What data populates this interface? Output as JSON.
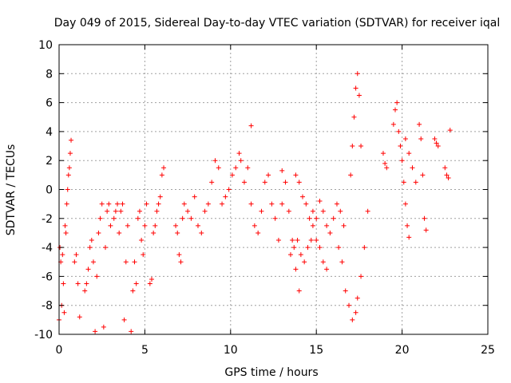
{
  "chart_data": {
    "type": "scatter",
    "title": "Day 049 of 2015, Sidereal Day-to-day VTEC variation (SDTVAR) for receiver iqal",
    "xlabel": "GPS time / hours",
    "ylabel": "SDTVAR / TECUs",
    "xlim": [
      0,
      25
    ],
    "ylim": [
      -10,
      10
    ],
    "xticks": [
      "0",
      "5",
      "10",
      "15",
      "20",
      "25"
    ],
    "yticks": [
      "-10",
      "-8",
      "-6",
      "-4",
      "-2",
      "0",
      "2",
      "4",
      "6",
      "8",
      "10"
    ],
    "grid": true,
    "marker": "+",
    "color": "#ff0000",
    "segments": [
      {
        "x": [
          0.0,
          0.1,
          0.2,
          0.3,
          0.4,
          0.5,
          0.55,
          0.6,
          0.65,
          0.7
        ],
        "y": [
          -9.0,
          -5.0,
          -4.5,
          -8.5,
          -3.0,
          0.0,
          1.0,
          1.5,
          2.5,
          3.4
        ]
      },
      {
        "x": [
          0.05,
          0.15,
          0.25,
          0.35,
          0.45
        ],
        "y": [
          -4.0,
          -8.0,
          -6.5,
          -2.5,
          -1.0
        ]
      },
      {
        "x": [
          0.9,
          1.0,
          1.1,
          1.2
        ],
        "y": [
          -5.0,
          -4.5,
          -6.5,
          -8.8
        ]
      },
      {
        "x": [
          1.5,
          1.6,
          1.7,
          1.8,
          1.9,
          2.0,
          2.1,
          2.2,
          2.3,
          2.4,
          2.5,
          2.6,
          2.7,
          2.8,
          2.9,
          3.0
        ],
        "y": [
          -7.0,
          -6.5,
          -5.5,
          -4.0,
          -3.5,
          -5.0,
          -9.8,
          -6.0,
          -3.0,
          -2.0,
          -1.0,
          -9.5,
          -4.0,
          -1.5,
          -1.0,
          -2.5
        ]
      },
      {
        "x": [
          3.2,
          3.3,
          3.4,
          3.5,
          3.6,
          3.7,
          3.8,
          3.9,
          4.0
        ],
        "y": [
          -2.0,
          -1.5,
          -1.0,
          -3.0,
          -1.5,
          -1.0,
          -9.0,
          -5.0,
          -2.5
        ]
      },
      {
        "x": [
          4.2,
          4.3,
          4.4,
          4.5,
          4.6,
          4.7,
          4.8,
          4.9,
          5.0,
          5.1
        ],
        "y": [
          -9.8,
          -7.0,
          -5.0,
          -6.5,
          -2.0,
          -1.5,
          -3.5,
          -4.5,
          -2.5,
          -1.0
        ]
      },
      {
        "x": [
          5.3,
          5.4,
          5.5,
          5.6,
          5.7,
          5.8,
          5.9,
          6.0,
          6.1
        ],
        "y": [
          -6.5,
          -6.2,
          -3.0,
          -2.5,
          -1.5,
          -1.0,
          -0.5,
          1.0,
          1.5
        ]
      },
      {
        "x": [
          6.8,
          6.9,
          7.0,
          7.1,
          7.2,
          7.3
        ],
        "y": [
          -2.5,
          -3.0,
          -4.5,
          -5.0,
          -2.0,
          -1.0
        ]
      },
      {
        "x": [
          7.5,
          7.7,
          7.9,
          8.1,
          8.3,
          8.5,
          8.7,
          8.9,
          9.1,
          9.3
        ],
        "y": [
          -1.5,
          -2.0,
          -0.5,
          -2.5,
          -3.0,
          -1.5,
          -1.0,
          0.5,
          2.0,
          1.5
        ]
      },
      {
        "x": [
          9.5,
          9.7,
          9.9,
          10.1,
          10.3,
          10.5
        ],
        "y": [
          -1.0,
          -0.5,
          0.0,
          1.0,
          1.5,
          2.5
        ]
      },
      {
        "x": [
          10.6,
          10.8,
          11.0,
          11.2
        ],
        "y": [
          2.0,
          0.5,
          1.5,
          4.4
        ]
      },
      {
        "x": [
          11.2,
          11.4,
          11.6,
          11.8,
          12.0,
          12.2,
          12.4,
          12.6,
          12.8,
          13.0
        ],
        "y": [
          -1.0,
          -2.5,
          -3.0,
          -1.5,
          0.5,
          1.0,
          -1.0,
          -2.0,
          -3.5,
          -1.0
        ]
      },
      {
        "x": [
          13.0,
          13.2,
          13.4,
          13.6,
          13.8,
          14.0
        ],
        "y": [
          1.3,
          0.5,
          -1.5,
          -3.5,
          -5.5,
          -7.0
        ]
      },
      {
        "x": [
          13.8,
          14.0,
          14.2,
          14.4,
          14.6,
          14.8,
          15.0,
          15.2,
          15.4,
          15.6
        ],
        "y": [
          1.0,
          0.5,
          -0.5,
          -1.0,
          -2.0,
          -2.5,
          -3.5,
          -4.0,
          -5.0,
          -5.5
        ]
      },
      {
        "x": [
          13.5,
          13.7,
          13.9,
          14.1,
          14.3,
          14.5,
          14.7
        ],
        "y": [
          -4.5,
          -4.0,
          -3.5,
          -4.5,
          -5.0,
          -4.0,
          -3.5
        ]
      },
      {
        "x": [
          14.8,
          15.0,
          15.2,
          15.4,
          15.6,
          15.8,
          16.0,
          16.2,
          16.4,
          16.6
        ],
        "y": [
          -1.5,
          -2.0,
          -0.8,
          -1.5,
          -2.5,
          -3.0,
          -2.0,
          -1.0,
          -1.5,
          -2.5
        ]
      },
      {
        "x": [
          16.3,
          16.5,
          16.7,
          16.9,
          17.1,
          17.3
        ],
        "y": [
          -4.0,
          -5.0,
          -7.0,
          -8.0,
          -9.0,
          -8.5
        ]
      },
      {
        "x": [
          17.0,
          17.1,
          17.2,
          17.3,
          17.4,
          17.5,
          17.6
        ],
        "y": [
          1.0,
          3.0,
          5.0,
          7.0,
          8.0,
          6.5,
          3.0
        ]
      },
      {
        "x": [
          17.4,
          17.6,
          17.8,
          18.0
        ],
        "y": [
          -7.5,
          -6.0,
          -4.0,
          -1.5
        ]
      },
      {
        "x": [
          18.9,
          19.0,
          19.1
        ],
        "y": [
          2.5,
          1.8,
          1.5
        ]
      },
      {
        "x": [
          19.5,
          19.6,
          19.7,
          19.8,
          19.9,
          20.0,
          20.1,
          20.2,
          20.3,
          20.4
        ],
        "y": [
          4.5,
          5.5,
          6.0,
          4.0,
          3.0,
          2.0,
          0.5,
          -1.0,
          -2.5,
          -3.3
        ]
      },
      {
        "x": [
          20.2,
          20.4,
          20.6,
          20.8
        ],
        "y": [
          3.5,
          2.5,
          1.5,
          0.5
        ]
      },
      {
        "x": [
          21.0,
          21.1,
          21.2,
          21.3,
          21.4
        ],
        "y": [
          4.5,
          3.5,
          1.0,
          -2.0,
          -2.8
        ]
      },
      {
        "x": [
          21.9,
          22.0,
          22.1
        ],
        "y": [
          3.5,
          3.2,
          3.0
        ]
      },
      {
        "x": [
          22.5,
          22.6,
          22.7,
          22.8
        ],
        "y": [
          1.5,
          1.0,
          0.8,
          4.1
        ]
      }
    ]
  }
}
